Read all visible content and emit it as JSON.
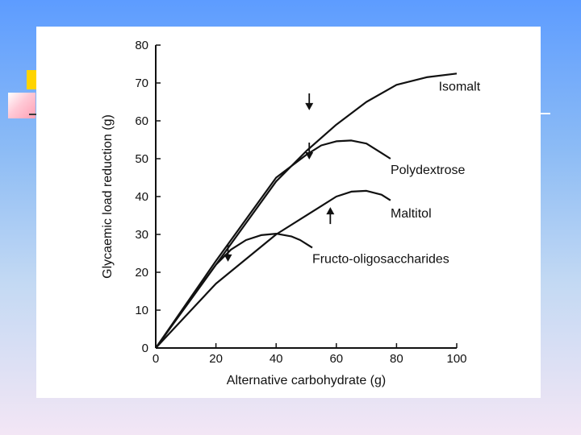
{
  "chart_data": {
    "type": "line",
    "title": "",
    "xlabel": "Alternative carbohydrate (g)",
    "ylabel": "Glycaemic load reduction (g)",
    "xlim": [
      0,
      100
    ],
    "ylim": [
      0,
      80
    ],
    "xticks": [
      "0",
      "20",
      "40",
      "60",
      "80",
      "100"
    ],
    "yticks": [
      "0",
      "10",
      "20",
      "30",
      "40",
      "50",
      "60",
      "70",
      "80"
    ],
    "grid": false,
    "legend": "inline labels",
    "series": [
      {
        "name": "Isomalt",
        "x": [
          0,
          20,
          40,
          50,
          60,
          70,
          80,
          90,
          100
        ],
        "y": [
          0,
          22,
          44,
          52,
          59,
          65,
          69.5,
          71.5,
          72.5
        ],
        "label_at": [
          94,
          69
        ]
      },
      {
        "name": "Polydextrose",
        "x": [
          0,
          20,
          40,
          50,
          55,
          60,
          65,
          70,
          75,
          78
        ],
        "y": [
          0,
          23,
          45,
          51,
          53.5,
          54.6,
          54.8,
          54,
          51.5,
          50
        ],
        "label_at": [
          78,
          47
        ]
      },
      {
        "name": "Maltitol",
        "x": [
          0,
          20,
          40,
          55,
          60,
          65,
          70,
          75,
          78
        ],
        "y": [
          0,
          17,
          30,
          37.5,
          40,
          41.3,
          41.5,
          40.5,
          39
        ],
        "label_at": [
          78,
          35.5
        ]
      },
      {
        "name": "Fructo-oligosaccharides",
        "x": [
          0,
          10,
          20,
          25,
          30,
          35,
          40,
          45,
          48,
          52
        ],
        "y": [
          0,
          11,
          22,
          26,
          28.5,
          29.8,
          30.2,
          29.5,
          28.5,
          26.5
        ],
        "label_at": [
          52,
          23.5
        ]
      }
    ],
    "annotations": [
      {
        "type": "arrow-down",
        "x": 51,
        "y": 63
      },
      {
        "type": "arrow-down",
        "x": 51,
        "y": 50
      },
      {
        "type": "arrow-up",
        "x": 58,
        "y": 37
      },
      {
        "type": "arrow-down",
        "x": 24,
        "y": 23
      }
    ]
  }
}
